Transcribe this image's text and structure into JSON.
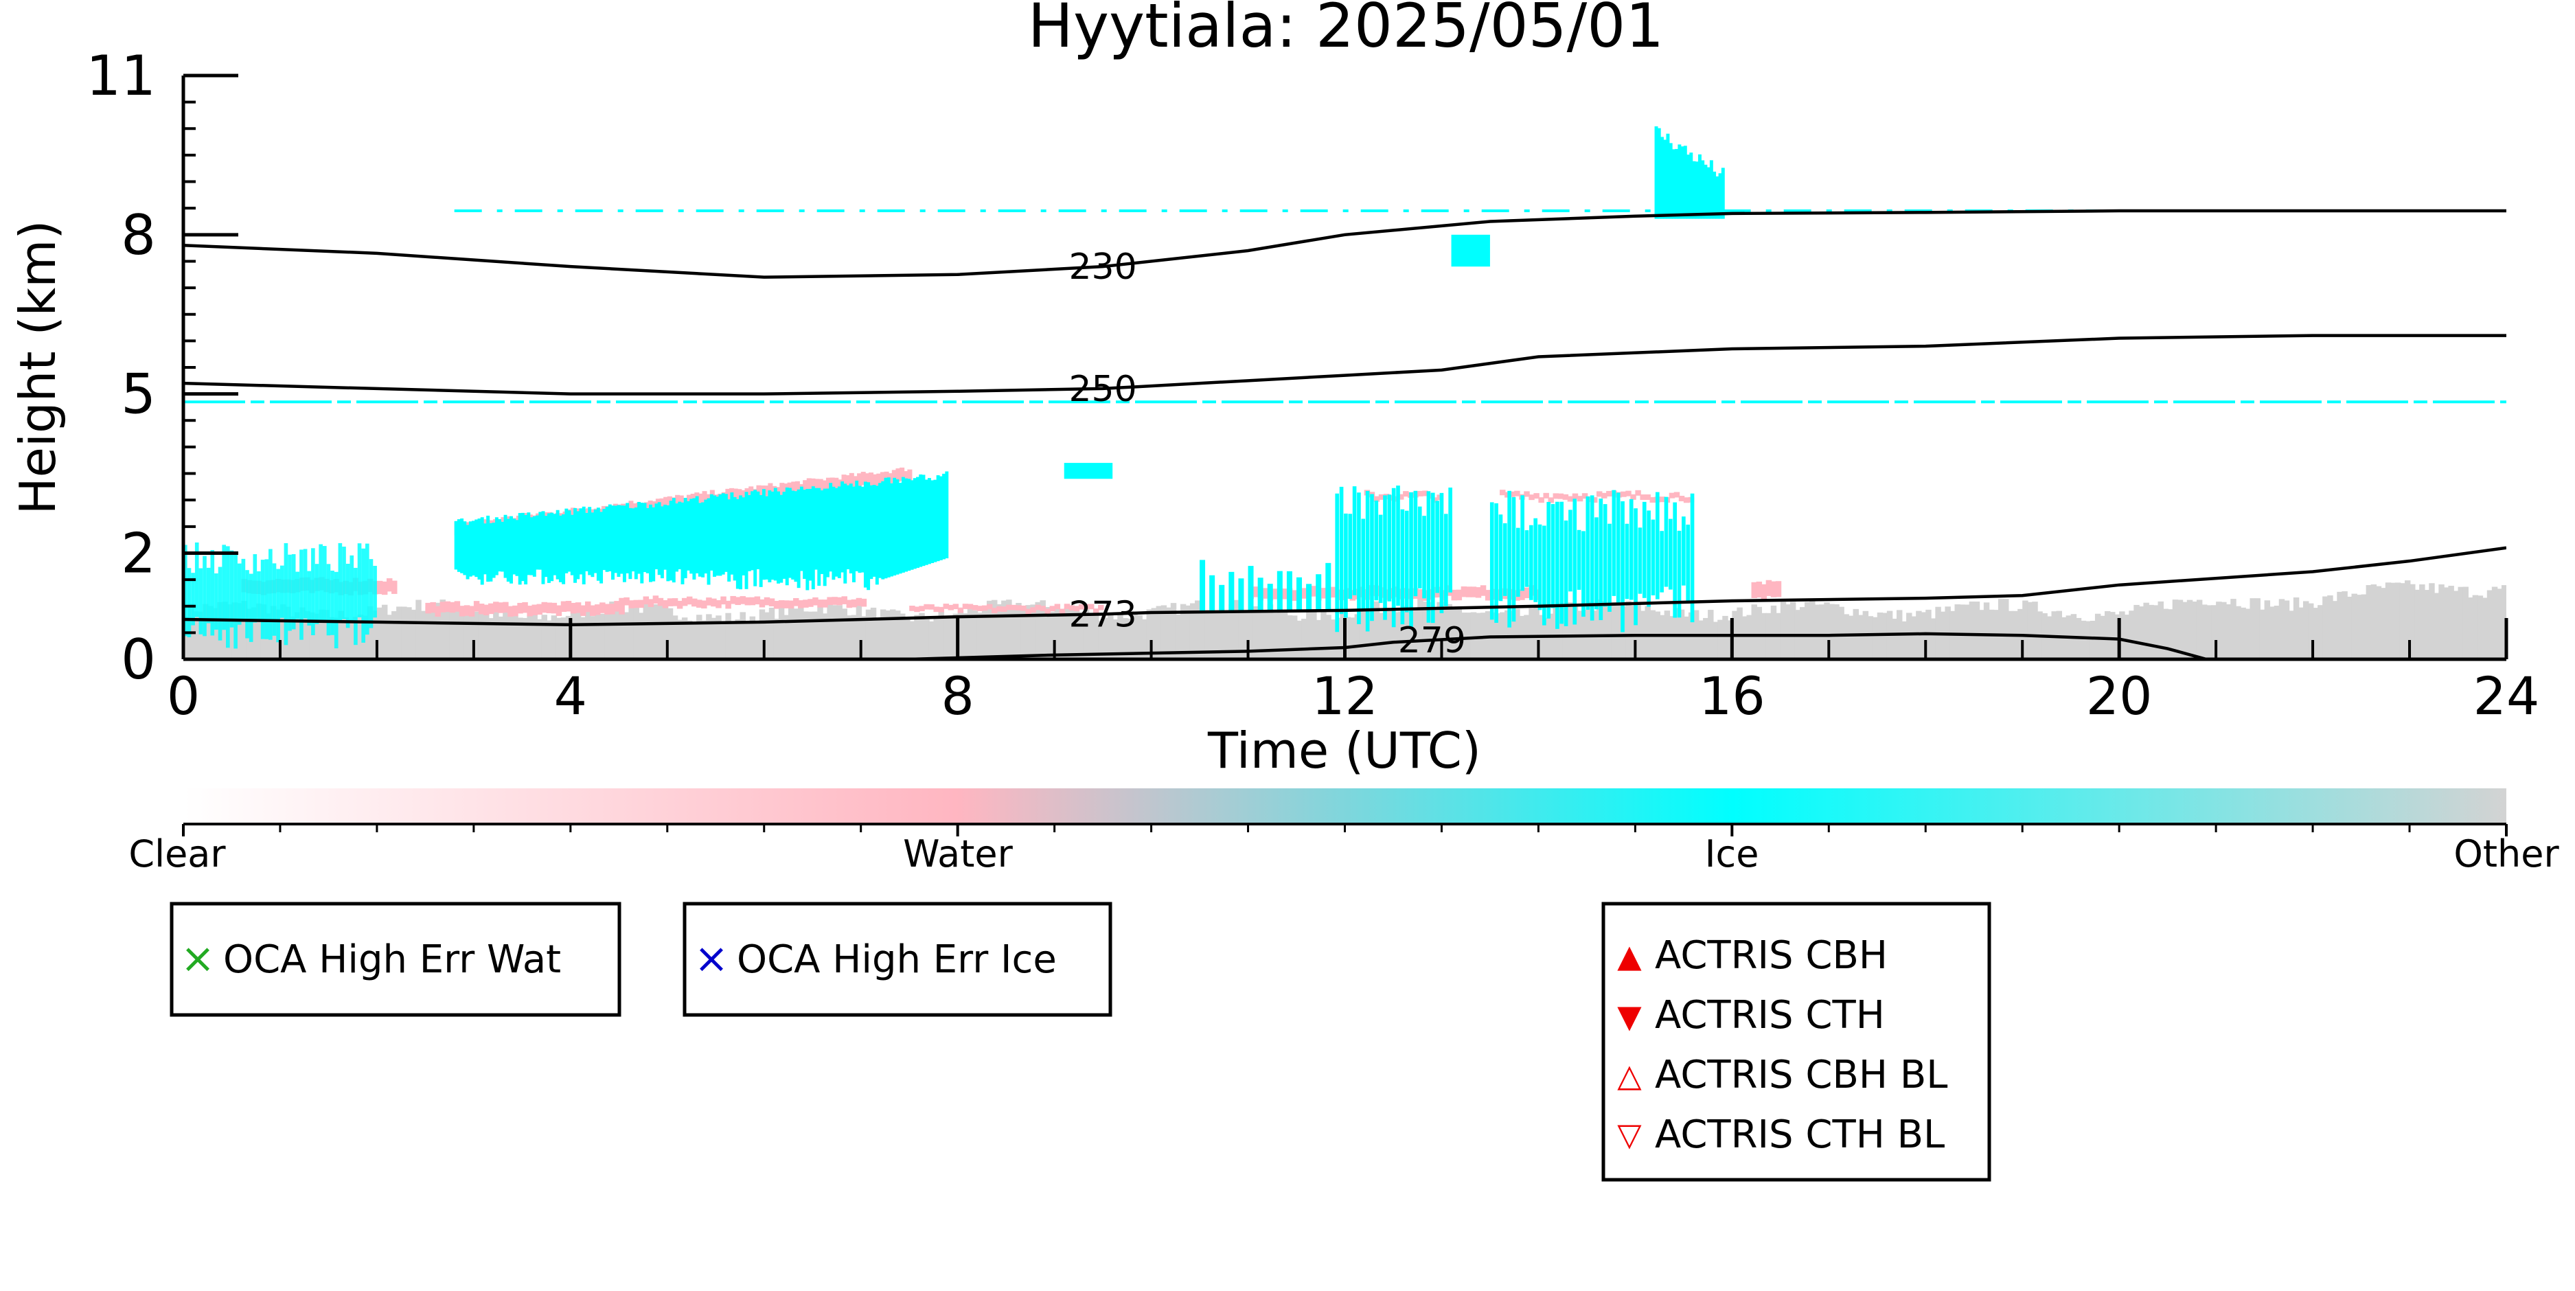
{
  "chart_data": {
    "type": "heatmap",
    "title": "Hyytiala: 2025/05/01",
    "xlabel": "Time (UTC)",
    "ylabel": "Height (km)",
    "xlim": [
      0,
      24
    ],
    "ylim": [
      0,
      11
    ],
    "x_ticks": [
      0,
      4,
      8,
      12,
      16,
      20,
      24
    ],
    "y_ticks": [
      0,
      2,
      5,
      8,
      11
    ],
    "colorbar": {
      "labels": [
        {
          "value": 0,
          "text": "Clear"
        },
        {
          "value": 1,
          "text": "Water"
        },
        {
          "value": 2,
          "text": "Ice"
        },
        {
          "value": 3,
          "text": "Other"
        }
      ],
      "colors": {
        "clear": "#ffffff",
        "water": "#ffb6c1",
        "ice": "#00ffff",
        "other": "#d3d3d3"
      }
    },
    "temperature_contours": [
      {
        "label": "230",
        "label_x": 9.5,
        "points": [
          [
            0,
            7.8
          ],
          [
            2,
            7.65
          ],
          [
            4,
            7.4
          ],
          [
            6,
            7.2
          ],
          [
            8,
            7.25
          ],
          [
            9.5,
            7.4
          ],
          [
            11,
            7.7
          ],
          [
            12,
            8.0
          ],
          [
            13.5,
            8.25
          ],
          [
            15,
            8.35
          ],
          [
            16,
            8.4
          ],
          [
            18,
            8.42
          ],
          [
            20,
            8.45
          ],
          [
            22,
            8.45
          ],
          [
            24,
            8.45
          ]
        ]
      },
      {
        "label": "250",
        "label_x": 9.5,
        "points": [
          [
            0,
            5.2
          ],
          [
            2,
            5.1
          ],
          [
            4,
            5.0
          ],
          [
            6,
            5.0
          ],
          [
            8,
            5.05
          ],
          [
            9.5,
            5.1
          ],
          [
            11,
            5.25
          ],
          [
            12,
            5.35
          ],
          [
            13,
            5.45
          ],
          [
            14,
            5.7
          ],
          [
            16,
            5.85
          ],
          [
            18,
            5.9
          ],
          [
            20,
            6.05
          ],
          [
            22,
            6.1
          ],
          [
            24,
            6.1
          ]
        ]
      },
      {
        "label": "273",
        "label_x": 9.5,
        "points": [
          [
            0,
            0.75
          ],
          [
            2,
            0.7
          ],
          [
            4,
            0.65
          ],
          [
            6,
            0.7
          ],
          [
            8,
            0.8
          ],
          [
            9.5,
            0.85
          ],
          [
            10,
            0.88
          ],
          [
            12,
            0.92
          ],
          [
            14,
            1.0
          ],
          [
            16,
            1.1
          ],
          [
            18,
            1.15
          ],
          [
            19,
            1.2
          ],
          [
            20,
            1.4
          ],
          [
            22,
            1.65
          ],
          [
            23,
            1.85
          ],
          [
            24,
            2.1
          ]
        ]
      },
      {
        "label": "279",
        "label_x": 12.9,
        "points": [
          [
            7.5,
            0.0
          ],
          [
            9,
            0.08
          ],
          [
            11,
            0.15
          ],
          [
            12,
            0.22
          ],
          [
            12.5,
            0.32
          ],
          [
            13.5,
            0.42
          ],
          [
            15,
            0.45
          ],
          [
            17,
            0.45
          ],
          [
            18,
            0.48
          ],
          [
            19,
            0.45
          ],
          [
            20,
            0.38
          ],
          [
            20.5,
            0.2
          ],
          [
            20.9,
            0.0
          ]
        ]
      }
    ],
    "bands": [
      {
        "class": "ice",
        "height_km": 8.45,
        "x_range": [
          2.8,
          23.5
        ]
      },
      {
        "class": "ice",
        "height_km": 4.85,
        "x_range": [
          0,
          24
        ]
      }
    ],
    "clouds": [
      {
        "class": "other",
        "x_range": [
          0,
          24
        ],
        "top_km": 0.8,
        "note": "boundary-layer returns"
      },
      {
        "class": "water",
        "x": [
          3.0,
          7.5
        ],
        "top_km": 3.6,
        "base_km": 2.5
      },
      {
        "class": "ice",
        "x": [
          2.8,
          8.0
        ],
        "top_km": 3.5,
        "base_km": 1.2
      },
      {
        "class": "ice",
        "x": [
          12.0,
          13.0
        ],
        "top_km": 3.3,
        "base_km": 0.5
      },
      {
        "class": "ice",
        "x": [
          13.5,
          15.5
        ],
        "top_km": 3.2,
        "base_km": 0.6
      },
      {
        "class": "ice",
        "x": [
          15.2,
          15.9
        ],
        "top_km": 9.8,
        "base_km": 8.3
      }
    ]
  },
  "legends": {
    "oca_wat": {
      "marker": "×",
      "label": "OCA High Err Wat",
      "color": "#22aa22"
    },
    "oca_ice": {
      "marker": "×",
      "label": "OCA High Err Ice",
      "color": "#0000cc"
    },
    "actris": [
      {
        "marker": "▲",
        "label": "ACTRIS CBH",
        "color": "#ee0000"
      },
      {
        "marker": "▼",
        "label": "ACTRIS CTH",
        "color": "#ee0000"
      },
      {
        "marker": "△",
        "label": "ACTRIS CBH BL",
        "color": "#ee0000"
      },
      {
        "marker": "▽",
        "label": "ACTRIS CTH BL",
        "color": "#ee0000"
      }
    ]
  }
}
